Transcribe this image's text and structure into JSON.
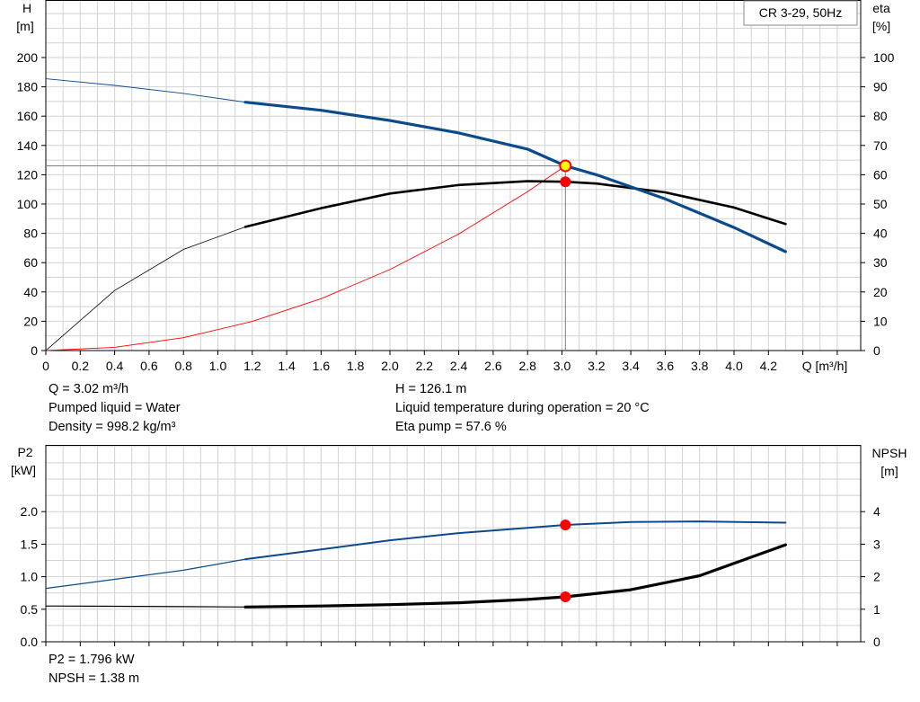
{
  "chart_data": [
    {
      "type": "line",
      "title": "CR 3-29, 50Hz",
      "xlabel": "Q [m³/h]",
      "ylabel_left_name": "H",
      "ylabel_left_unit": "[m]",
      "ylabel_right_name": "eta",
      "ylabel_right_unit": "[%]",
      "xlim": [
        0,
        4.6
      ],
      "ylim_left": [
        0,
        210
      ],
      "ylim_right": [
        0,
        105
      ],
      "x_ticks": [
        "0",
        "0.2",
        "0.4",
        "0.6",
        "0.8",
        "1.0",
        "1.2",
        "1.4",
        "1.6",
        "1.8",
        "2.0",
        "2.2",
        "2.4",
        "2.6",
        "2.8",
        "3.0",
        "3.2",
        "3.4",
        "3.6",
        "3.8",
        "4.0",
        "4.2"
      ],
      "y_left_ticks": [
        "0",
        "20",
        "40",
        "60",
        "80",
        "100",
        "120",
        "140",
        "160",
        "180",
        "200"
      ],
      "y_right_ticks": [
        "0",
        "10",
        "20",
        "30",
        "40",
        "50",
        "60",
        "70",
        "80",
        "90",
        "100"
      ],
      "grid": true,
      "series": [
        {
          "key": "head",
          "axis": "left",
          "color": "#0b4a8b",
          "x": [
            0,
            0.4,
            0.8,
            1.16,
            1.6,
            2.0,
            2.4,
            2.8,
            3.02,
            3.2,
            3.6,
            4.0,
            4.3
          ],
          "y": [
            185.5,
            181,
            175.5,
            169.5,
            164,
            157,
            148.5,
            137.5,
            126.1,
            120,
            103.5,
            84,
            67.5
          ]
        },
        {
          "key": "eta",
          "axis": "right",
          "color": "#000000",
          "x": [
            0,
            0.4,
            0.8,
            1.16,
            1.6,
            2.0,
            2.4,
            2.8,
            3.02,
            3.2,
            3.6,
            4.0,
            4.3
          ],
          "y": [
            0,
            20.5,
            34.5,
            42.2,
            48.6,
            53.6,
            56.5,
            57.8,
            57.6,
            57.0,
            54.0,
            48.8,
            43.2
          ]
        },
        {
          "key": "system",
          "axis": "left",
          "color": "#ff0000",
          "x": [
            0,
            0.4,
            0.8,
            1.2,
            1.6,
            2.0,
            2.4,
            2.8,
            3.02
          ],
          "y": [
            0,
            2.2,
            8.8,
            19.9,
            35.4,
            55.3,
            79.6,
            108.4,
            126.1
          ]
        }
      ],
      "duty_point": {
        "x": 3.02,
        "head": 126.1,
        "eta": 57.6
      },
      "info_left": [
        "Q = 3.02 m³/h",
        "Pumped liquid = Water",
        "Density = 998.2 kg/m³"
      ],
      "info_right": [
        "H = 126.1 m",
        "Liquid temperature during operation = 20 °C",
        "Eta pump = 57.6 %"
      ]
    },
    {
      "type": "line",
      "ylabel_left_name": "P2",
      "ylabel_left_unit": "[kW]",
      "ylabel_right_name": "NPSH",
      "ylabel_right_unit": "[m]",
      "xlim": [
        0,
        4.6
      ],
      "ylim_left": [
        0,
        2.5
      ],
      "ylim_right": [
        0,
        5
      ],
      "y_left_ticks": [
        "0.0",
        "0.5",
        "1.0",
        "1.5",
        "2.0"
      ],
      "y_right_ticks": [
        "0",
        "1",
        "2",
        "3",
        "4"
      ],
      "grid": true,
      "series": [
        {
          "key": "p2",
          "axis": "left",
          "color": "#0b4a8b",
          "x": [
            0,
            0.4,
            0.8,
            1.16,
            1.6,
            2.0,
            2.4,
            2.8,
            3.02,
            3.4,
            3.8,
            4.3
          ],
          "y": [
            0.82,
            0.96,
            1.1,
            1.27,
            1.42,
            1.56,
            1.67,
            1.75,
            1.796,
            1.84,
            1.85,
            1.83
          ]
        },
        {
          "key": "npsh",
          "axis": "right",
          "color": "#000000",
          "x": [
            0,
            0.4,
            0.8,
            1.16,
            1.6,
            2.0,
            2.4,
            2.8,
            3.02,
            3.4,
            3.8,
            4.3
          ],
          "y": [
            1.1,
            1.09,
            1.08,
            1.07,
            1.1,
            1.14,
            1.2,
            1.3,
            1.38,
            1.6,
            2.03,
            2.98
          ]
        }
      ],
      "duty_point": {
        "x": 3.02,
        "p2": 1.796,
        "npsh": 1.38
      },
      "info_left": [
        "P2 = 1.796 kW",
        "NPSH = 1.38 m"
      ]
    }
  ]
}
